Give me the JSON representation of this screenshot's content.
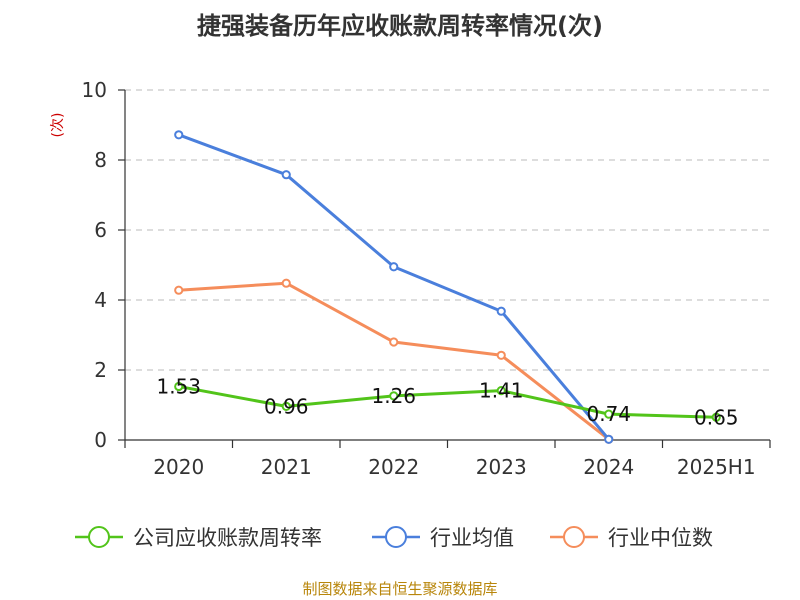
{
  "chart_data": {
    "type": "line",
    "title": "捷强装备历年应收账款周转率情况(次)",
    "ylabel": "(次)",
    "categories": [
      "2020",
      "2021",
      "2022",
      "2023",
      "2024",
      "2025H1"
    ],
    "ylim": [
      0,
      10
    ],
    "yticks": [
      "0",
      "2",
      "4",
      "6",
      "8",
      "10"
    ],
    "grid": true,
    "legend_position": "bottom",
    "series": [
      {
        "name": "公司应收账款周转率",
        "color": "#52c41a",
        "values": [
          1.53,
          0.96,
          1.26,
          1.41,
          0.74,
          0.65
        ],
        "labels": [
          "1.53",
          "0.96",
          "1.26",
          "1.41",
          "0.74",
          "0.65"
        ]
      },
      {
        "name": "行业均值",
        "color": "#4a7fdc",
        "values": [
          8.72,
          7.58,
          4.95,
          3.68,
          0.02,
          null
        ]
      },
      {
        "name": "行业中位数",
        "color": "#f58d5b",
        "values": [
          4.28,
          4.48,
          2.8,
          2.42,
          0.02,
          null
        ]
      }
    ]
  },
  "source": "制图数据来自恒生聚源数据库"
}
